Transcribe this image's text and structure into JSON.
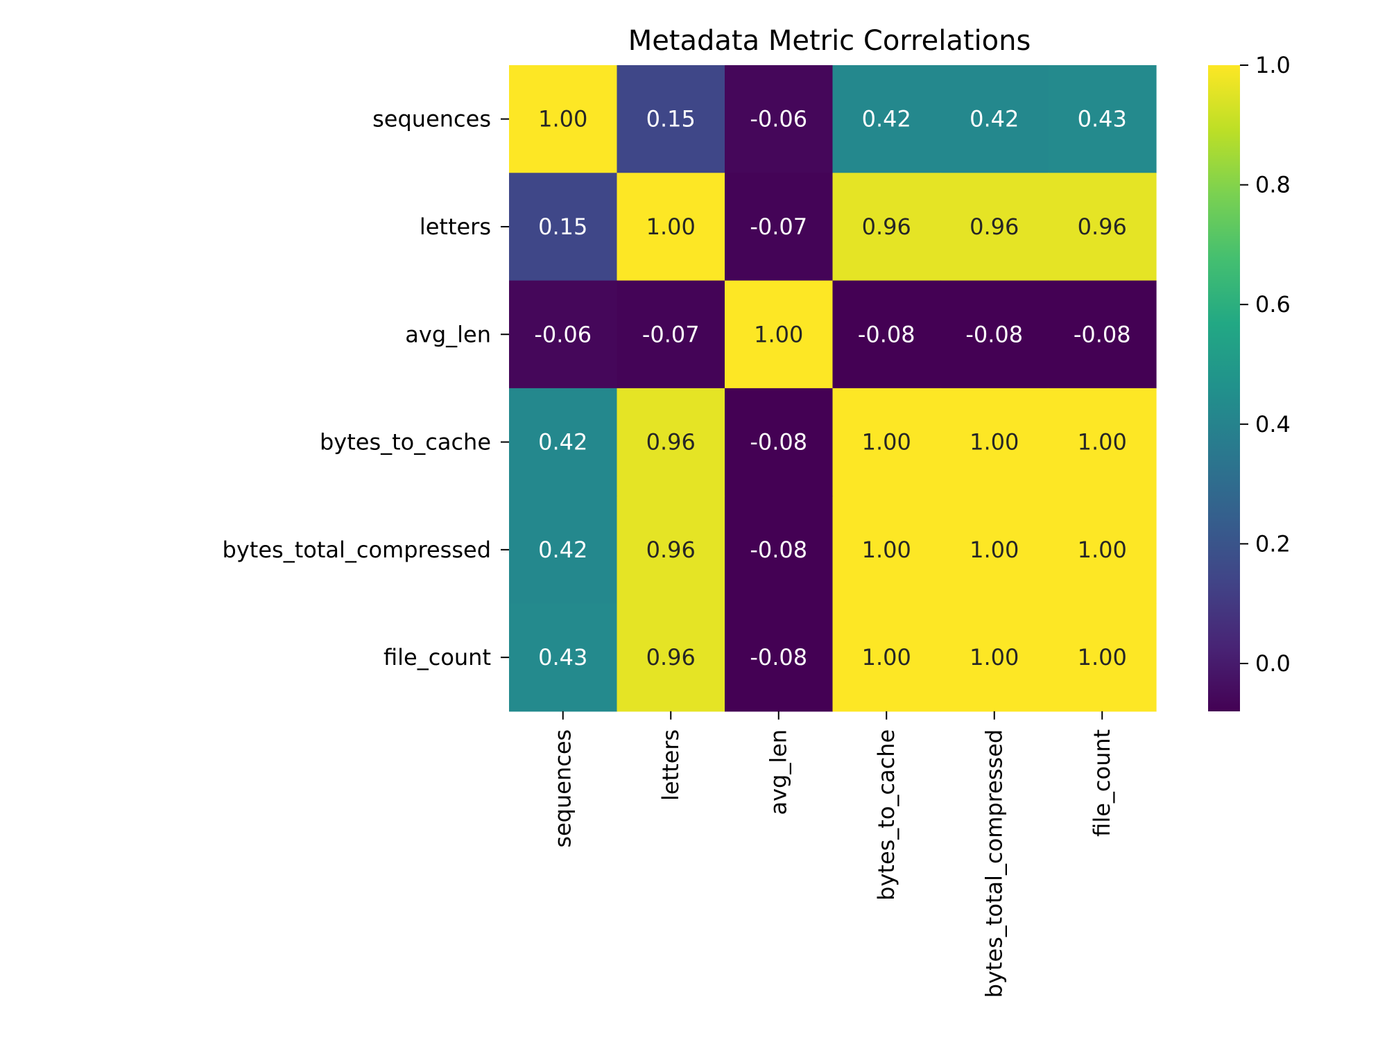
{
  "chart_data": {
    "type": "heatmap",
    "title": "Metadata Metric Correlations",
    "row_labels": [
      "sequences",
      "letters",
      "avg_len",
      "bytes_to_cache",
      "bytes_total_compressed",
      "file_count"
    ],
    "col_labels": [
      "sequences",
      "letters",
      "avg_len",
      "bytes_to_cache",
      "bytes_total_compressed",
      "file_count"
    ],
    "values": [
      [
        1.0,
        0.15,
        -0.06,
        0.42,
        0.42,
        0.43
      ],
      [
        0.15,
        1.0,
        -0.07,
        0.96,
        0.96,
        0.96
      ],
      [
        -0.06,
        -0.07,
        1.0,
        -0.08,
        -0.08,
        -0.08
      ],
      [
        0.42,
        0.96,
        -0.08,
        1.0,
        1.0,
        1.0
      ],
      [
        0.42,
        0.96,
        -0.08,
        1.0,
        1.0,
        1.0
      ],
      [
        0.43,
        0.96,
        -0.08,
        1.0,
        1.0,
        1.0
      ]
    ],
    "value_format": "0.00",
    "colormap": "viridis",
    "colorbar": {
      "range": [
        -0.08,
        1.0
      ],
      "ticks": [
        "0.0",
        "0.2",
        "0.4",
        "0.6",
        "0.8",
        "1.0"
      ],
      "tick_values": [
        0.0,
        0.2,
        0.4,
        0.6,
        0.8,
        1.0
      ]
    },
    "grid": false,
    "legend": "colorbar-right"
  }
}
